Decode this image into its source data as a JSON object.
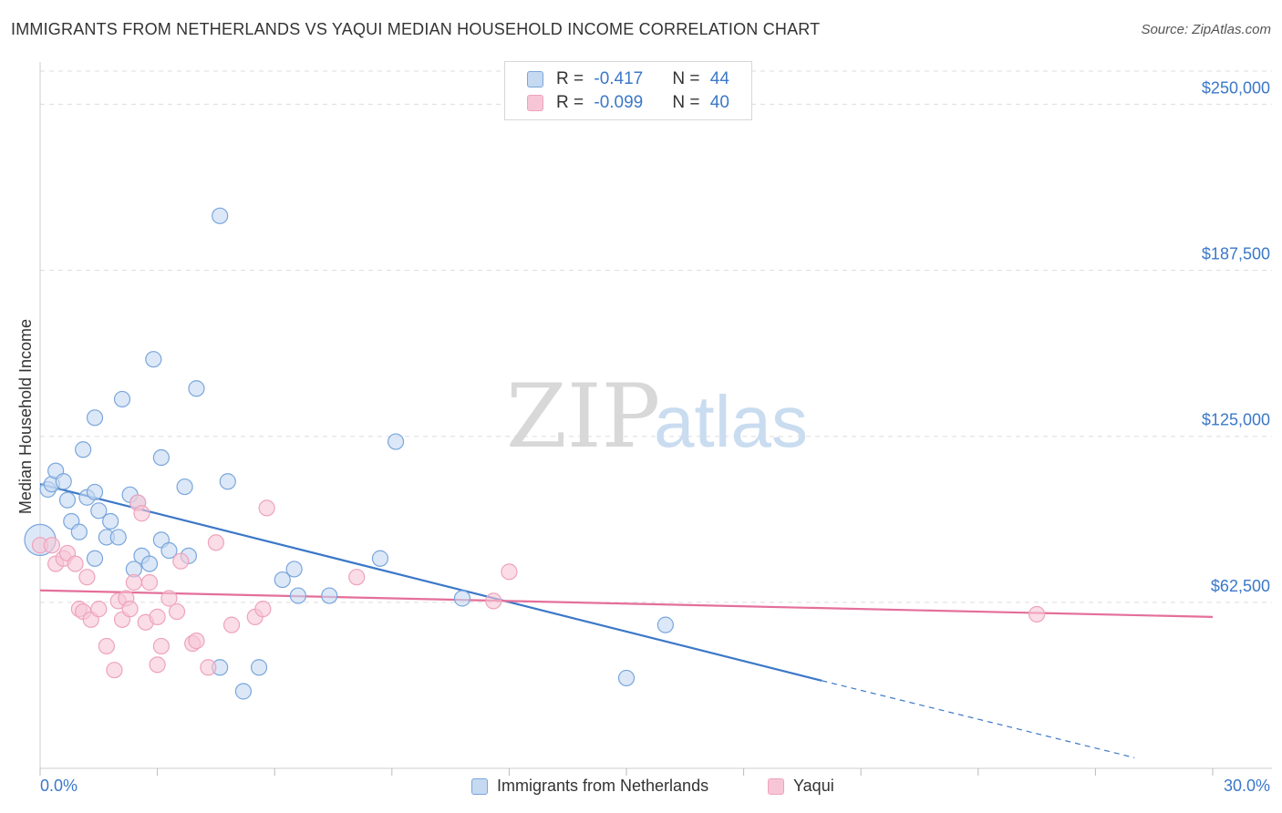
{
  "title": "IMMIGRANTS FROM NETHERLANDS VS YAQUI MEDIAN HOUSEHOLD INCOME CORRELATION CHART",
  "source": "Source: ZipAtlas.com",
  "watermark": {
    "zip": "ZIP",
    "atlas": "atlas"
  },
  "colors": {
    "blue": "#3b78c8",
    "blue_fill": "#c5d9f1",
    "pink": "#e46f9a",
    "pink_fill": "#f7c6d6",
    "grid": "#dddddd"
  },
  "legend_top": {
    "rows": [
      {
        "r_label": "R = ",
        "r_value": "-0.417",
        "n_label": "N = ",
        "n_value": "44"
      },
      {
        "r_label": "R = ",
        "r_value": "-0.099",
        "n_label": "N = ",
        "n_value": "40"
      }
    ]
  },
  "legend_bottom": [
    "Immigrants from Netherlands",
    "Yaqui"
  ],
  "chart_data": {
    "type": "scatter",
    "ylabel": "Median Household Income",
    "xlabel": "",
    "xlim": [
      0,
      30
    ],
    "ylim": [
      0,
      262500
    ],
    "x_tick_labels": {
      "left": "0.0%",
      "right": "30.0%"
    },
    "y_ticks": [
      62500,
      125000,
      187500,
      250000
    ],
    "y_tick_labels": [
      "$62,500",
      "$125,000",
      "$187,500",
      "$250,000"
    ],
    "grid": true,
    "series": [
      {
        "name": "Immigrants from Netherlands",
        "color": "#3b78c8",
        "points": [
          [
            0.0,
            86000
          ],
          [
            0.2,
            105000
          ],
          [
            0.3,
            107000
          ],
          [
            0.4,
            112000
          ],
          [
            0.6,
            108000
          ],
          [
            0.7,
            101000
          ],
          [
            0.8,
            93000
          ],
          [
            1.0,
            89000
          ],
          [
            1.1,
            120000
          ],
          [
            1.2,
            102000
          ],
          [
            1.4,
            104000
          ],
          [
            1.4,
            79000
          ],
          [
            1.4,
            132000
          ],
          [
            1.5,
            97000
          ],
          [
            1.7,
            87000
          ],
          [
            1.8,
            93000
          ],
          [
            2.0,
            87000
          ],
          [
            2.1,
            139000
          ],
          [
            2.3,
            103000
          ],
          [
            2.4,
            75000
          ],
          [
            2.5,
            100000
          ],
          [
            2.6,
            80000
          ],
          [
            2.8,
            77000
          ],
          [
            2.9,
            154000
          ],
          [
            3.1,
            86000
          ],
          [
            3.1,
            117000
          ],
          [
            3.3,
            82000
          ],
          [
            3.7,
            106000
          ],
          [
            3.8,
            80000
          ],
          [
            4.0,
            143000
          ],
          [
            4.6,
            208000
          ],
          [
            4.6,
            38000
          ],
          [
            4.8,
            108000
          ],
          [
            5.2,
            29000
          ],
          [
            5.6,
            38000
          ],
          [
            6.2,
            71000
          ],
          [
            6.5,
            75000
          ],
          [
            6.6,
            65000
          ],
          [
            7.4,
            65000
          ],
          [
            8.7,
            79000
          ],
          [
            9.1,
            123000
          ],
          [
            10.8,
            64000
          ],
          [
            15.0,
            34000
          ],
          [
            16.0,
            54000
          ]
        ]
      },
      {
        "name": "Yaqui",
        "color": "#e46f9a",
        "points": [
          [
            0.0,
            84000
          ],
          [
            0.3,
            84000
          ],
          [
            0.4,
            77000
          ],
          [
            0.6,
            79000
          ],
          [
            0.7,
            81000
          ],
          [
            0.9,
            77000
          ],
          [
            1.0,
            60000
          ],
          [
            1.1,
            59000
          ],
          [
            1.2,
            72000
          ],
          [
            1.3,
            56000
          ],
          [
            1.5,
            60000
          ],
          [
            1.7,
            46000
          ],
          [
            1.9,
            37000
          ],
          [
            2.0,
            63000
          ],
          [
            2.1,
            56000
          ],
          [
            2.2,
            64000
          ],
          [
            2.3,
            60000
          ],
          [
            2.4,
            70000
          ],
          [
            2.5,
            100000
          ],
          [
            2.6,
            96000
          ],
          [
            2.7,
            55000
          ],
          [
            2.8,
            70000
          ],
          [
            3.0,
            57000
          ],
          [
            3.0,
            39000
          ],
          [
            3.1,
            46000
          ],
          [
            3.3,
            64000
          ],
          [
            3.5,
            59000
          ],
          [
            3.6,
            78000
          ],
          [
            3.9,
            47000
          ],
          [
            4.0,
            48000
          ],
          [
            4.3,
            38000
          ],
          [
            4.5,
            85000
          ],
          [
            4.9,
            54000
          ],
          [
            5.5,
            57000
          ],
          [
            5.7,
            60000
          ],
          [
            5.8,
            98000
          ],
          [
            8.1,
            72000
          ],
          [
            12.0,
            74000
          ],
          [
            11.6,
            63000
          ],
          [
            25.5,
            58000
          ]
        ]
      }
    ],
    "trendlines": [
      {
        "series": "Immigrants from Netherlands",
        "solid": [
          [
            0.0,
            107000
          ],
          [
            20.0,
            33000
          ]
        ],
        "dashed": [
          [
            20.0,
            33000
          ],
          [
            28.0,
            4000
          ]
        ]
      },
      {
        "series": "Yaqui",
        "solid": [
          [
            0.0,
            67000
          ],
          [
            30.0,
            57000
          ]
        ]
      }
    ]
  }
}
